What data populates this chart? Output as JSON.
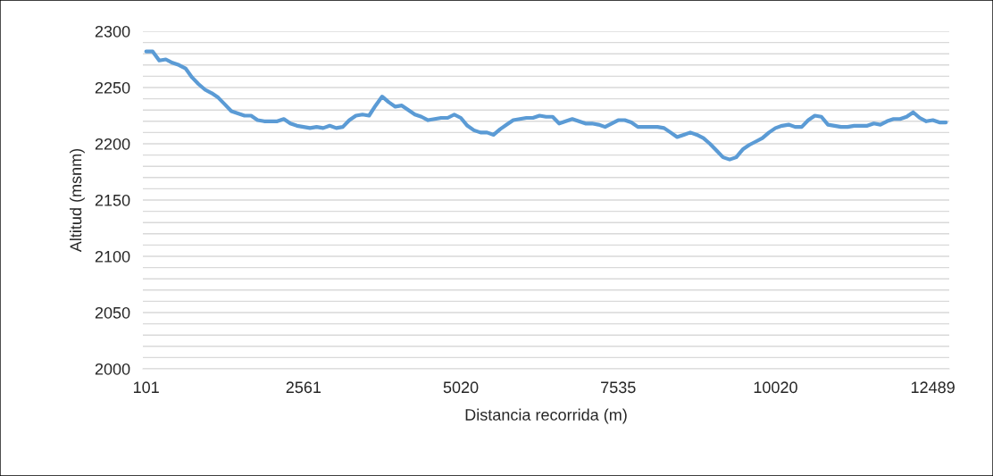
{
  "chart_data": {
    "type": "line",
    "xlabel": "Distancia recorrida (m)",
    "ylabel": "Altitud (msnm)",
    "categories": [
      "101",
      null,
      null,
      null,
      null,
      null,
      null,
      null,
      null,
      null,
      null,
      null,
      null,
      null,
      null,
      null,
      null,
      null,
      null,
      null,
      null,
      null,
      null,
      null,
      "2561",
      null,
      null,
      null,
      null,
      null,
      null,
      null,
      null,
      null,
      null,
      null,
      null,
      null,
      null,
      null,
      null,
      null,
      null,
      null,
      null,
      null,
      null,
      null,
      "5020",
      null,
      null,
      null,
      null,
      null,
      null,
      null,
      null,
      null,
      null,
      null,
      null,
      null,
      null,
      null,
      null,
      null,
      null,
      null,
      null,
      null,
      null,
      null,
      "7535",
      null,
      null,
      null,
      null,
      null,
      null,
      null,
      null,
      null,
      null,
      null,
      null,
      null,
      null,
      null,
      null,
      null,
      null,
      null,
      null,
      null,
      null,
      null,
      "10020",
      null,
      null,
      null,
      null,
      null,
      null,
      null,
      null,
      null,
      null,
      null,
      null,
      null,
      null,
      null,
      null,
      null,
      null,
      null,
      null,
      null,
      null,
      null,
      "12489",
      null,
      null
    ],
    "series": [
      {
        "color": "#5b9bd5",
        "values": [
          2282,
          2282,
          2274,
          2275,
          2272,
          2270,
          2267,
          2259,
          2253,
          2248,
          2245,
          2241,
          2235,
          2229,
          2227,
          2225,
          2225,
          2221,
          2220,
          2220,
          2220,
          2222,
          2218,
          2216,
          2215,
          2214,
          2215,
          2214,
          2216,
          2214,
          2215,
          2221,
          2225,
          2226,
          2225,
          2234,
          2242,
          2237,
          2233,
          2234,
          2230,
          2226,
          2224,
          2221,
          2222,
          2223,
          2223,
          2226,
          2223,
          2216,
          2212,
          2210,
          2210,
          2208,
          2213,
          2217,
          2221,
          2222,
          2223,
          2223,
          2225,
          2224,
          2224,
          2218,
          2220,
          2222,
          2220,
          2218,
          2218,
          2217,
          2215,
          2218,
          2221,
          2221,
          2219,
          2215,
          2215,
          2215,
          2215,
          2214,
          2210,
          2206,
          2208,
          2210,
          2208,
          2205,
          2200,
          2194,
          2188,
          2186,
          2188,
          2195,
          2199,
          2202,
          2205,
          2210,
          2214,
          2216,
          2217,
          2215,
          2215,
          2221,
          2225,
          2224,
          2217,
          2216,
          2215,
          2215,
          2216,
          2216,
          2216,
          2218,
          2217,
          2220,
          2222,
          2222,
          2224,
          2228,
          2223,
          2220,
          2221,
          2219,
          2219
        ]
      }
    ],
    "ylim": [
      2000,
      2300
    ],
    "yticks": [
      2000,
      {
        "value": 2010,
        "label": null
      },
      {
        "value": 2020,
        "label": null
      },
      {
        "value": 2030,
        "label": null
      },
      {
        "value": 2040,
        "label": null
      },
      2050,
      {
        "value": 2060,
        "label": null
      },
      {
        "value": 2070,
        "label": null
      },
      {
        "value": 2080,
        "label": null
      },
      {
        "value": 2090,
        "label": null
      },
      2100,
      {
        "value": 2110,
        "label": null
      },
      {
        "value": 2120,
        "label": null
      },
      {
        "value": 2130,
        "label": null
      },
      {
        "value": 2140,
        "label": null
      },
      2150,
      {
        "value": 2160,
        "label": null
      },
      {
        "value": 2170,
        "label": null
      },
      {
        "value": 2180,
        "label": null
      },
      {
        "value": 2190,
        "label": null
      },
      2200,
      {
        "value": 2210,
        "label": null
      },
      {
        "value": 2220,
        "label": null
      },
      {
        "value": 2230,
        "label": null
      },
      {
        "value": 2240,
        "label": null
      },
      2250,
      {
        "value": 2260,
        "label": null
      },
      {
        "value": 2270,
        "label": null
      },
      {
        "value": 2280,
        "label": null
      },
      {
        "value": 2290,
        "label": null
      },
      2300
    ],
    "grid": "y",
    "marker": "none",
    "line_style": "solid"
  }
}
